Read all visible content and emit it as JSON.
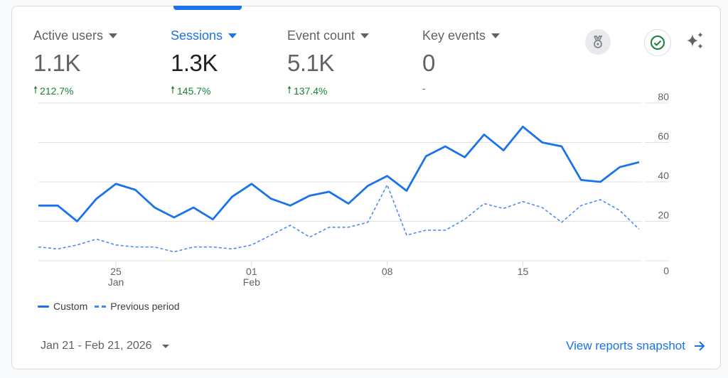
{
  "metrics": [
    {
      "label": "Active users",
      "value": "1.1K",
      "change": "212.7%",
      "direction": "up",
      "active": false
    },
    {
      "label": "Sessions",
      "value": "1.3K",
      "change": "145.7%",
      "direction": "up",
      "active": true
    },
    {
      "label": "Event count",
      "value": "5.1K",
      "change": "137.4%",
      "direction": "up",
      "active": false
    },
    {
      "label": "Key events",
      "value": "0",
      "change": "-",
      "direction": "none",
      "active": false
    }
  ],
  "icons": {
    "badge": "medal-icon",
    "check": "check-circle-icon",
    "insights": "sparkle-icon"
  },
  "colors": {
    "accent": "#1a73e8",
    "positive": "#188038",
    "previous": "#4285f4"
  },
  "legend": {
    "current": "Custom",
    "previous": "Previous period"
  },
  "footer": {
    "date_range": "Jan 21 - Feb 21, 2026",
    "snapshot_link": "View reports snapshot"
  },
  "chart_data": {
    "type": "line",
    "x": [
      "2026-01-21",
      "2026-01-22",
      "2026-01-23",
      "2026-01-24",
      "2026-01-25",
      "2026-01-26",
      "2026-01-27",
      "2026-01-28",
      "2026-01-29",
      "2026-01-30",
      "2026-01-31",
      "2026-02-01",
      "2026-02-02",
      "2026-02-03",
      "2026-02-04",
      "2026-02-05",
      "2026-02-06",
      "2026-02-07",
      "2026-02-08",
      "2026-02-09",
      "2026-02-10",
      "2026-02-11",
      "2026-02-12",
      "2026-02-13",
      "2026-02-14",
      "2026-02-15",
      "2026-02-16",
      "2026-02-17",
      "2026-02-18",
      "2026-02-19",
      "2026-02-20",
      "2026-02-21"
    ],
    "x_ticks": [
      {
        "date": "2026-01-25",
        "label": "25",
        "sublabel": "Jan"
      },
      {
        "date": "2026-02-01",
        "label": "01",
        "sublabel": "Feb"
      },
      {
        "date": "2026-02-08",
        "label": "08",
        "sublabel": ""
      },
      {
        "date": "2026-02-15",
        "label": "15",
        "sublabel": ""
      }
    ],
    "y_ticks": [
      "0",
      "20",
      "40",
      "60",
      "80"
    ],
    "ylim": [
      0,
      80
    ],
    "y_axis_side": "right",
    "grid": true,
    "legend_position": "bottom-left",
    "series": [
      {
        "name": "Custom",
        "style": "solid",
        "values": [
          28,
          28,
          20,
          31.5,
          39,
          36,
          27,
          22,
          27,
          21,
          32.5,
          39,
          31.5,
          28,
          33,
          35,
          29,
          38,
          43,
          35.5,
          53,
          58,
          52.5,
          64,
          56,
          68,
          60,
          58,
          41,
          40,
          47.5,
          50
        ]
      },
      {
        "name": "Previous period",
        "style": "dashed",
        "values": [
          7,
          6,
          8,
          11,
          8,
          7,
          7,
          4.5,
          7,
          7,
          6,
          8,
          13,
          18,
          12,
          17,
          17,
          19.5,
          38.5,
          13,
          15.5,
          15.5,
          21,
          29,
          26.5,
          30,
          27,
          19.5,
          28,
          31,
          25.5,
          16
        ]
      }
    ]
  }
}
